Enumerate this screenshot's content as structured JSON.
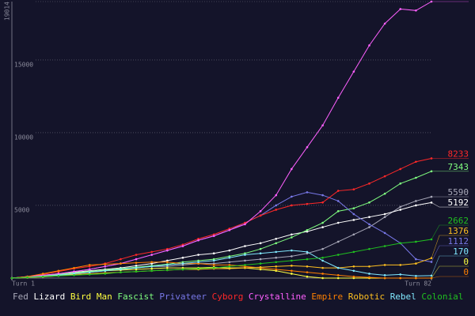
{
  "chart_data": {
    "type": "line",
    "x": [
      1,
      4,
      7,
      10,
      13,
      16,
      19,
      22,
      25,
      28,
      31,
      34,
      37,
      40,
      43,
      46,
      49,
      52,
      55,
      58,
      61,
      64,
      67,
      70,
      73,
      76,
      79,
      82
    ],
    "xlim": [
      1,
      82
    ],
    "xticks": [
      {
        "value": 1,
        "label": "Turn 1"
      },
      {
        "value": 82,
        "label": "Turn 82"
      }
    ],
    "ylim": [
      0,
      19014
    ],
    "yticks": [
      5000,
      10000,
      15000,
      19014
    ],
    "grid": true,
    "series": [
      {
        "name": "Fed",
        "color": "#a8a8b8",
        "values": [
          0,
          50,
          100,
          200,
          300,
          400,
          500,
          600,
          700,
          800,
          800,
          900,
          1000,
          1000,
          1100,
          1200,
          1300,
          1400,
          1500,
          1700,
          2000,
          2500,
          3000,
          3500,
          4200,
          4900,
          5300,
          5590
        ]
      },
      {
        "name": "Lizard",
        "color": "#ffffff",
        "values": [
          0,
          80,
          180,
          300,
          400,
          500,
          600,
          700,
          850,
          1000,
          1200,
          1400,
          1600,
          1700,
          1900,
          2200,
          2400,
          2700,
          3000,
          3200,
          3500,
          3800,
          4000,
          4200,
          4400,
          4700,
          5000,
          5192
        ]
      },
      {
        "name": "Bird Man",
        "color": "#ffff40",
        "values": [
          0,
          50,
          150,
          250,
          350,
          450,
          500,
          550,
          600,
          650,
          700,
          700,
          700,
          750,
          700,
          700,
          600,
          500,
          300,
          100,
          0,
          0,
          0,
          0,
          0,
          0,
          0,
          0
        ]
      },
      {
        "name": "Fascist",
        "color": "#80ff80",
        "values": [
          0,
          50,
          150,
          250,
          350,
          450,
          550,
          650,
          750,
          850,
          950,
          1100,
          1200,
          1300,
          1500,
          1700,
          2000,
          2400,
          2800,
          3300,
          3800,
          4600,
          4800,
          5200,
          5800,
          6500,
          6900,
          7343
        ]
      },
      {
        "name": "Privateer",
        "color": "#7878e8",
        "values": [
          0,
          100,
          200,
          300,
          450,
          600,
          800,
          1000,
          1300,
          1600,
          1900,
          2200,
          2600,
          2900,
          3300,
          3800,
          4300,
          5000,
          5600,
          5900,
          5700,
          5300,
          4400,
          3700,
          3100,
          2400,
          1300,
          1112
        ]
      },
      {
        "name": "Cyborg",
        "color": "#ff2828",
        "values": [
          0,
          100,
          250,
          450,
          650,
          800,
          1000,
          1300,
          1600,
          1800,
          2000,
          2300,
          2700,
          3000,
          3400,
          3800,
          4300,
          4700,
          5000,
          5100,
          5200,
          6000,
          6100,
          6500,
          7000,
          7500,
          8000,
          8233
        ]
      },
      {
        "name": "Crystalline",
        "color": "#ff60ff",
        "values": [
          0,
          100,
          200,
          300,
          450,
          600,
          800,
          1000,
          1300,
          1600,
          1900,
          2200,
          2600,
          2900,
          3300,
          3700,
          4600,
          5700,
          7500,
          9000,
          10500,
          12400,
          14200,
          16000,
          17500,
          18500,
          18400,
          19014
        ]
      },
      {
        "name": "Empire",
        "color": "#ff8000",
        "values": [
          0,
          100,
          300,
          500,
          700,
          900,
          950,
          1000,
          1050,
          1100,
          1100,
          1000,
          1000,
          900,
          900,
          800,
          700,
          600,
          500,
          400,
          300,
          200,
          100,
          50,
          0,
          0,
          0,
          0
        ]
      },
      {
        "name": "Robotic",
        "color": "#ffc020",
        "values": [
          0,
          30,
          80,
          150,
          250,
          300,
          350,
          400,
          450,
          500,
          550,
          600,
          600,
          650,
          650,
          700,
          750,
          800,
          850,
          800,
          700,
          700,
          800,
          800,
          900,
          900,
          1000,
          1376
        ]
      },
      {
        "name": "Rebel",
        "color": "#80e8ff",
        "values": [
          0,
          50,
          100,
          200,
          300,
          400,
          500,
          600,
          700,
          800,
          900,
          1000,
          1100,
          1200,
          1400,
          1600,
          1700,
          1800,
          1900,
          1800,
          1200,
          700,
          500,
          300,
          200,
          250,
          150,
          170
        ]
      },
      {
        "name": "Colonial",
        "color": "#20c020",
        "values": [
          0,
          50,
          100,
          150,
          200,
          250,
          300,
          400,
          450,
          500,
          550,
          600,
          650,
          700,
          800,
          900,
          1000,
          1100,
          1200,
          1300,
          1400,
          1600,
          1800,
          2000,
          2200,
          2400,
          2500,
          2662
        ]
      }
    ]
  }
}
